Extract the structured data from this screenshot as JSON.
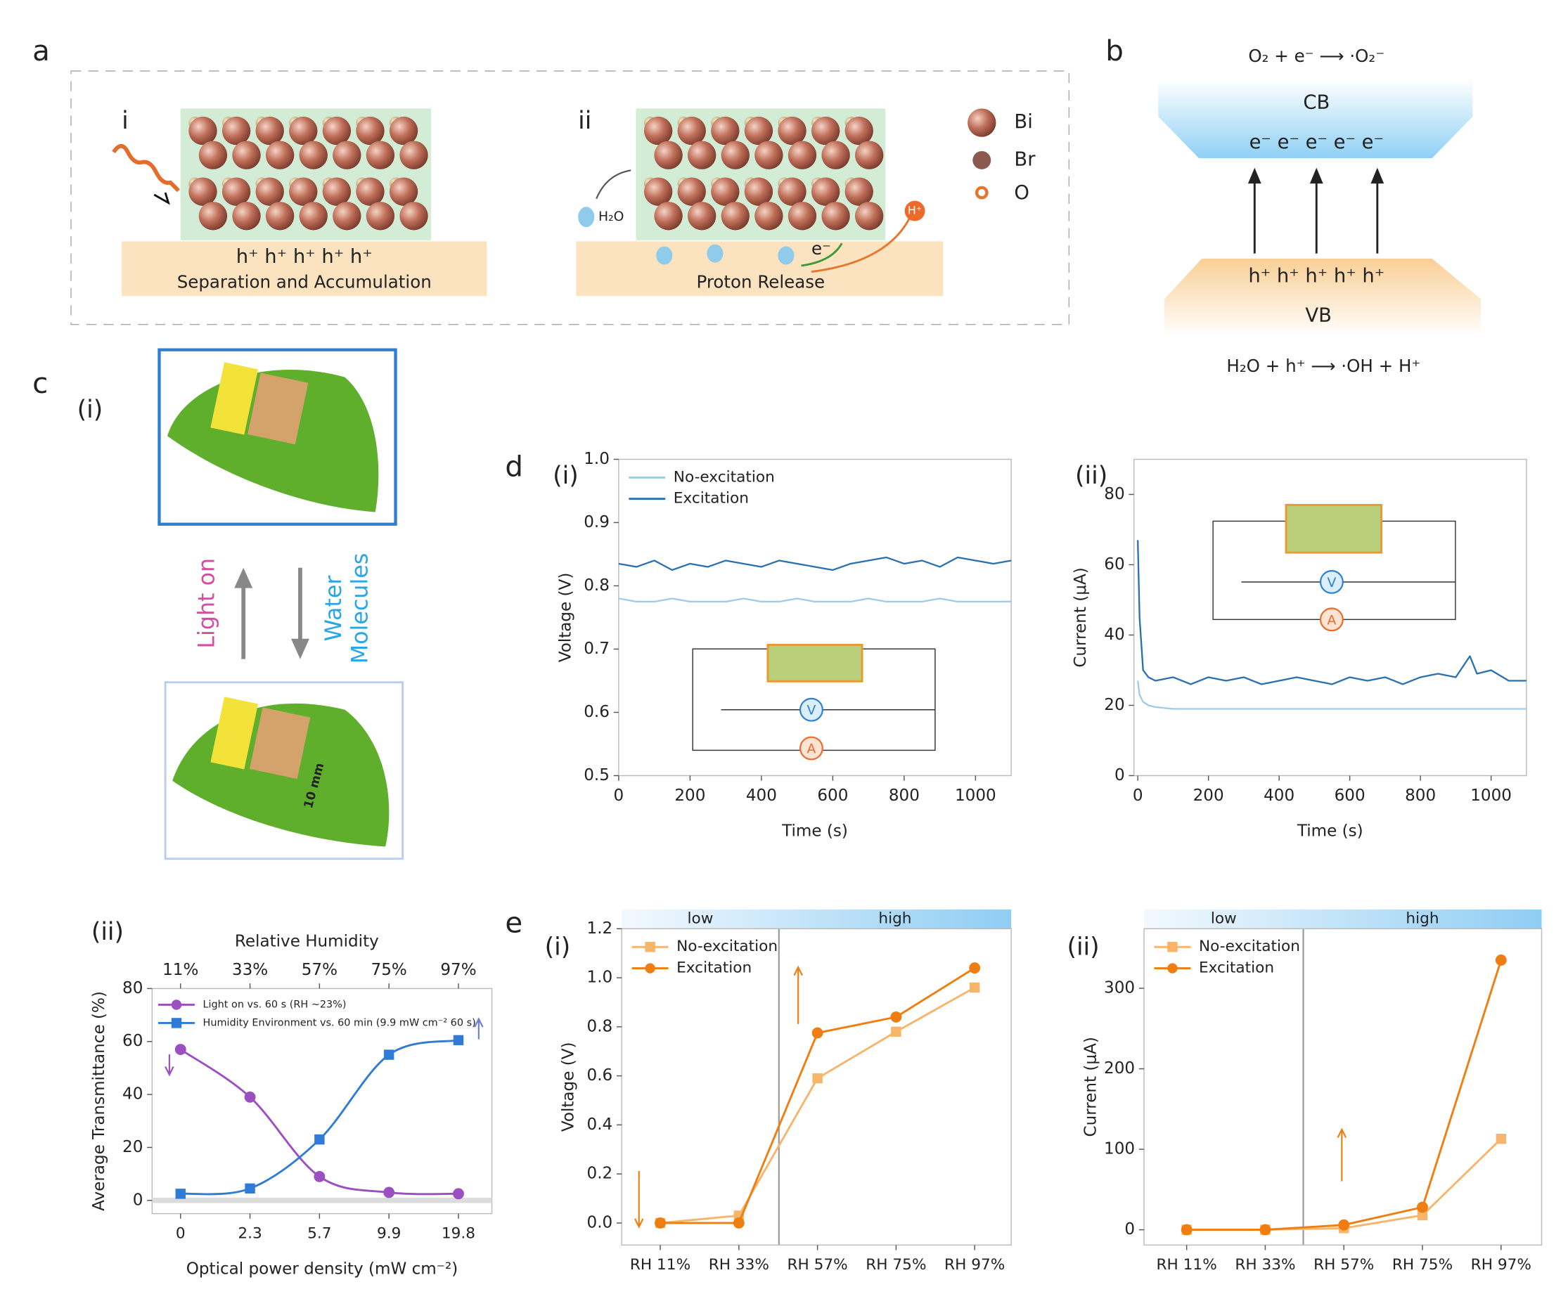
{
  "panel_labels": [
    "a",
    "b",
    "c",
    "d",
    "e"
  ],
  "panel_a": {
    "sub_i": "i",
    "sub_ii": "ii",
    "holes_i": "h⁺  h⁺  h⁺  h⁺  h⁺",
    "caption_i": "Separation and Accumulation",
    "caption_ii": "Proton Release",
    "water": "H₂O",
    "electron": "e⁻",
    "proton": "H⁺",
    "legend": [
      "Bi",
      "Br",
      "O"
    ]
  },
  "panel_b": {
    "top_eq": "O₂ + e⁻ ⟶ ·O₂⁻",
    "cb": "CB",
    "electrons": "e⁻   e⁻   e⁻   e⁻   e⁻",
    "holes": "h⁺  h⁺  h⁺  h⁺  h⁺",
    "vb": "VB",
    "bottom_eq": "H₂O + h⁺ ⟶ ·OH + H⁺"
  },
  "panel_c": {
    "sub_i": "(i)",
    "light_on": "Light on",
    "water": [
      "Water",
      "Molecules"
    ],
    "scale": "10 mm"
  },
  "chart_data": [
    {
      "type": "line",
      "panel": "(i)",
      "xlabel": "Time (s)",
      "ylabel": "Voltage (V)",
      "x": [
        0,
        50,
        100,
        150,
        200,
        250,
        300,
        350,
        400,
        450,
        500,
        550,
        600,
        650,
        700,
        750,
        800,
        850,
        900,
        950,
        1000,
        1050,
        1100
      ],
      "xlim": [
        0,
        1100
      ],
      "xticks": [
        0,
        200,
        400,
        600,
        800,
        1000
      ],
      "ylim": [
        0.5,
        1.0
      ],
      "yticks": [
        {
          "value": 0.5,
          "label": "0.5"
        },
        0.6,
        0.7,
        0.8,
        0.9,
        {
          "value": 1,
          "label": "1.0"
        }
      ],
      "legend": "upper left",
      "inset_labels": [
        "V",
        "A"
      ],
      "series": [
        {
          "name": "No-excitation",
          "color": "#9dcbe8",
          "values": [
            0.78,
            0.775,
            0.775,
            0.78,
            0.775,
            0.775,
            0.775,
            0.78,
            0.775,
            0.775,
            0.78,
            0.775,
            0.775,
            0.775,
            0.78,
            0.775,
            0.775,
            0.775,
            0.78,
            0.775,
            0.775,
            0.775,
            0.775
          ]
        },
        {
          "name": "Excitation",
          "color": "#2a6fb0",
          "values": [
            0.835,
            0.83,
            0.84,
            0.825,
            0.835,
            0.83,
            0.84,
            0.835,
            0.83,
            0.84,
            0.835,
            0.83,
            0.825,
            0.835,
            0.84,
            0.845,
            0.835,
            0.84,
            0.83,
            0.845,
            0.84,
            0.835,
            0.84
          ]
        }
      ]
    },
    {
      "type": "line",
      "panel": "(ii)",
      "xlabel": "Time (s)",
      "ylabel": "Current (μA)",
      "x": [
        0,
        5,
        15,
        30,
        50,
        100,
        150,
        200,
        250,
        300,
        350,
        400,
        450,
        500,
        550,
        600,
        650,
        700,
        750,
        800,
        850,
        900,
        940,
        960,
        1000,
        1050,
        1100
      ],
      "xlim": [
        -11,
        1100
      ],
      "xticks": [
        0,
        200,
        400,
        600,
        800,
        1000
      ],
      "ylim": [
        0,
        90
      ],
      "yticks": [
        0,
        20,
        40,
        60,
        80
      ],
      "inset_labels": [
        "V",
        "A"
      ],
      "series": [
        {
          "color": "#9dcbe8",
          "values": [
            27,
            23,
            21,
            20,
            19.5,
            19,
            19,
            19,
            19,
            19,
            19,
            19,
            19,
            19,
            19,
            19,
            19,
            19,
            19,
            19,
            19,
            19,
            19,
            19,
            19,
            19,
            19
          ]
        },
        {
          "color": "#2a6fb0",
          "values": [
            67,
            45,
            30,
            28,
            27,
            28,
            26,
            28,
            27,
            28,
            26,
            27,
            28,
            27,
            26,
            28,
            27,
            28,
            26,
            28,
            29,
            28,
            34,
            29,
            30,
            27,
            27
          ]
        }
      ]
    },
    {
      "type": "line",
      "panel": "(ii)",
      "smooth": true,
      "xlabel": "Optical power density (mW cm⁻²)",
      "ylabel": "Average Transmittance (%)",
      "top_label": "Relative Humidity",
      "top_categories": [
        "11%",
        "33%",
        "57%",
        "75%",
        "97%"
      ],
      "categories": [
        "0",
        "2.3",
        "5.7",
        "9.9",
        "19.8"
      ],
      "ylim": [
        -5,
        80
      ],
      "yticks": [
        0,
        20,
        40,
        60,
        80
      ],
      "legend": "upper left",
      "series": [
        {
          "name": "Light on vs. 60 s (RH ~23%)",
          "color": "#9b4fc0",
          "marker": "circle",
          "values": [
            57,
            39,
            9,
            3,
            2.5
          ]
        },
        {
          "name": "Humidity Environment vs. 60 min (9.9 mW cm⁻² 60 s)",
          "color": "#2f7bd6",
          "marker": "square",
          "values": [
            2.5,
            4.5,
            23,
            55,
            60.5
          ]
        }
      ]
    },
    {
      "type": "line",
      "panel": "(i)",
      "ylabel": "Voltage (V)",
      "band_labels": [
        "low",
        "high"
      ],
      "categories": [
        "RH 11%",
        "RH 33%",
        "RH 57%",
        "RH 75%",
        "RH 97%"
      ],
      "ylim": [
        -0.09,
        1.2
      ],
      "yticks": [
        {
          "value": 0,
          "label": "0.0"
        },
        0.2,
        0.4,
        0.6,
        0.8,
        {
          "value": 1,
          "label": "1.0"
        },
        1.2
      ],
      "legend": "upper left",
      "series": [
        {
          "name": "No-excitation",
          "color": "#f7b56c",
          "marker": "square",
          "values": [
            0,
            0.03,
            0.59,
            0.78,
            0.96
          ]
        },
        {
          "name": "Excitation",
          "color": "#f07d10",
          "marker": "circle",
          "values": [
            0,
            0,
            0.775,
            0.84,
            1.04
          ]
        }
      ]
    },
    {
      "type": "line",
      "panel": "(ii)",
      "ylabel": "Current (μA)",
      "band_labels": [
        "low",
        "high"
      ],
      "categories": [
        "RH 11%",
        "RH 33%",
        "RH 57%",
        "RH 75%",
        "RH 97%"
      ],
      "ylim": [
        -19,
        374
      ],
      "yticks": [
        0,
        100,
        200,
        300
      ],
      "legend": "upper left",
      "series": [
        {
          "name": "No-excitation",
          "color": "#f7b56c",
          "marker": "square",
          "values": [
            0,
            0,
            2,
            18,
            113
          ]
        },
        {
          "name": "Excitation",
          "color": "#f07d10",
          "marker": "circle",
          "values": [
            0,
            0,
            6,
            28,
            335
          ]
        }
      ]
    }
  ]
}
